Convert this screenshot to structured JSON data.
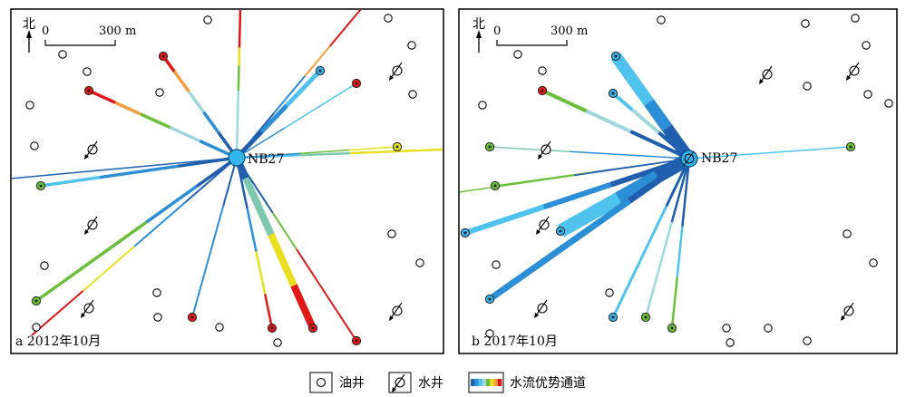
{
  "panels": [
    {
      "id": "a",
      "caption": "a 2012年10月",
      "north_label": "北",
      "scale_zero": "0",
      "scale_label": "300 m",
      "center_well": "NB27"
    },
    {
      "id": "b",
      "caption": "b 2017年10月",
      "north_label": "北",
      "scale_zero": "0",
      "scale_label": "300 m",
      "center_well": "NB27"
    }
  ],
  "legend": {
    "oil_well": "油井",
    "water_well": "水井",
    "channel": "水流优势通道"
  },
  "colors": {
    "ramp": [
      "#1f5fad",
      "#2c8fd6",
      "#4fc3ee",
      "#9fd8dc",
      "#6cbf3a",
      "#e8e020",
      "#f0a040",
      "#e01818"
    ],
    "frame": "#000000",
    "well_fill": "#35b6ec"
  },
  "icons": {
    "oil_well": "open-circle-icon",
    "water_well": "slashed-circle-arrow-icon",
    "north": "north-arrow-icon"
  }
}
